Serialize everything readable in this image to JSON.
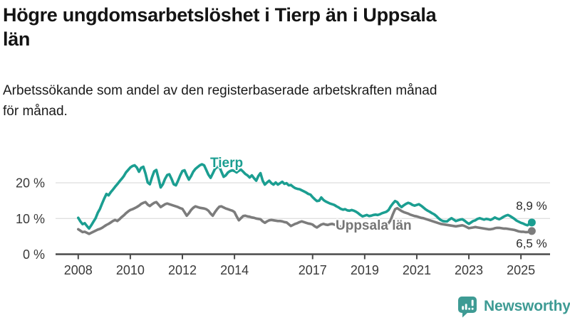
{
  "chart_data": {
    "type": "line",
    "title": "Högre ungdomsarbetslöshet i Tierp än i Uppsala län",
    "title_lines": [
      "Högre ungdomsarbetslöshet i Tierp än i Uppsala",
      "län"
    ],
    "subtitle": "Arbetssökande som andel av den registerbaserade arbetskraften månad för månad.",
    "subtitle_lines": [
      "Arbetssökande som andel av den registerbaserade arbetskraften månad",
      "för månad."
    ],
    "xlabel": "",
    "ylabel": "",
    "xlim": [
      2008,
      2025.6
    ],
    "ylim": [
      0,
      27
    ],
    "grid": "horizontal-at-10-and-20",
    "legend_position": "inline-labels-on-lines",
    "x_unit": "year-monthly-resolution",
    "x_start": 2008.0,
    "x_step": 0.0833333,
    "x_ticks": [
      2008,
      2010,
      2012,
      2014,
      2017,
      2019,
      2021,
      2023,
      2025
    ],
    "y_ticks": [
      {
        "value": 0,
        "label": "0 %"
      },
      {
        "value": 10,
        "label": "10 %"
      },
      {
        "value": 20,
        "label": "20 %"
      }
    ],
    "series": [
      {
        "name": "Uppsala län",
        "label": "Uppsala län",
        "end_label": "6,5 %",
        "end_value": 6.5,
        "color": "#7c7c7c",
        "values": [
          7.0,
          6.6,
          6.2,
          6.3,
          6.0,
          5.7,
          6.0,
          6.3,
          6.6,
          6.9,
          7.1,
          7.4,
          7.8,
          8.2,
          8.5,
          8.9,
          9.3,
          9.6,
          9.3,
          9.8,
          10.4,
          10.9,
          11.5,
          12.0,
          12.4,
          12.6,
          12.9,
          13.2,
          13.6,
          14.1,
          14.4,
          14.6,
          13.9,
          13.5,
          14.0,
          14.4,
          14.6,
          13.9,
          13.2,
          13.6,
          14.0,
          14.2,
          14.0,
          13.8,
          13.6,
          13.4,
          13.2,
          12.9,
          12.7,
          11.8,
          10.8,
          11.5,
          12.4,
          13.0,
          13.4,
          13.2,
          13.0,
          12.9,
          12.8,
          12.6,
          12.2,
          11.4,
          10.8,
          11.8,
          12.6,
          13.3,
          13.4,
          13.1,
          12.8,
          12.6,
          12.4,
          12.2,
          11.8,
          10.6,
          9.5,
          10.1,
          10.7,
          10.8,
          10.6,
          10.5,
          10.3,
          10.2,
          10.0,
          9.9,
          9.8,
          9.2,
          8.8,
          9.2,
          9.5,
          9.6,
          9.5,
          9.4,
          9.3,
          9.3,
          9.2,
          9.0,
          8.9,
          8.4,
          7.9,
          8.2,
          8.5,
          8.7,
          9.0,
          9.2,
          9.0,
          8.8,
          8.6,
          8.5,
          8.3,
          7.8,
          7.5,
          7.9,
          8.3,
          8.5,
          8.3,
          8.2,
          8.4,
          8.5,
          8.3,
          8.1,
          7.9,
          7.6,
          7.4,
          7.7,
          7.9,
          8.0,
          7.9,
          7.8,
          7.7,
          7.6,
          7.5,
          7.4,
          7.4,
          7.5,
          7.6,
          7.6,
          7.7,
          7.8,
          7.8,
          7.9,
          8.0,
          8.1,
          8.3,
          8.7,
          9.6,
          11.2,
          12.6,
          12.9,
          12.5,
          12.1,
          11.8,
          11.6,
          11.4,
          11.1,
          10.9,
          10.7,
          10.6,
          10.4,
          10.2,
          10.1,
          9.9,
          9.7,
          9.5,
          9.3,
          9.1,
          8.9,
          8.7,
          8.5,
          8.4,
          8.3,
          8.2,
          8.1,
          8.0,
          7.9,
          7.8,
          7.9,
          8.0,
          8.1,
          7.9,
          7.6,
          7.3,
          7.4,
          7.5,
          7.6,
          7.5,
          7.4,
          7.3,
          7.2,
          7.1,
          7.0,
          7.0,
          7.1,
          7.3,
          7.4,
          7.4,
          7.3,
          7.2,
          7.2,
          7.1,
          7.0,
          6.9,
          6.8,
          6.6,
          6.4,
          6.3,
          6.3,
          6.2,
          6.2,
          6.3,
          6.5
        ]
      },
      {
        "name": "Tierp",
        "label": "Tierp",
        "end_label": "8,9 %",
        "end_value": 8.9,
        "color": "#1b9e91",
        "values": [
          10.2,
          9.2,
          8.4,
          8.7,
          7.9,
          7.2,
          8.1,
          9.1,
          10.1,
          11.6,
          12.7,
          14.2,
          15.6,
          16.9,
          16.5,
          17.4,
          18.1,
          18.9,
          19.6,
          20.4,
          21.1,
          21.9,
          22.9,
          23.6,
          24.3,
          24.7,
          24.9,
          24.3,
          23.1,
          24.2,
          24.5,
          22.6,
          20.1,
          19.6,
          21.6,
          23.2,
          23.6,
          21.2,
          18.7,
          19.6,
          21.1,
          22.2,
          22.4,
          21.1,
          19.6,
          19.3,
          20.6,
          22.1,
          23.3,
          23.5,
          22.1,
          20.9,
          21.9,
          23.1,
          23.9,
          24.4,
          24.9,
          25.2,
          24.9,
          23.6,
          22.3,
          21.4,
          22.6,
          23.9,
          24.4,
          24.6,
          23.1,
          21.7,
          22.1,
          22.9,
          23.3,
          23.5,
          23.3,
          22.9,
          23.4,
          23.7,
          23.1,
          22.5,
          22.1,
          21.5,
          22.1,
          21.3,
          20.6,
          21.9,
          22.7,
          20.6,
          19.5,
          20.1,
          20.6,
          19.9,
          19.5,
          20.1,
          19.5,
          19.9,
          20.3,
          19.7,
          19.9,
          19.3,
          19.4,
          18.9,
          18.5,
          18.3,
          18.2,
          17.9,
          17.6,
          17.3,
          16.9,
          16.7,
          16.0,
          15.4,
          14.9,
          15.0,
          15.9,
          15.2,
          14.8,
          14.5,
          14.2,
          14.0,
          13.8,
          13.4,
          13.1,
          12.7,
          12.5,
          12.6,
          12.3,
          12.2,
          12.4,
          12.2,
          11.9,
          11.5,
          11.0,
          10.6,
          10.8,
          11.0,
          10.7,
          10.8,
          11.0,
          11.1,
          11.0,
          11.2,
          11.5,
          11.7,
          11.9,
          12.4,
          13.4,
          14.2,
          14.9,
          14.6,
          13.7,
          13.2,
          13.7,
          14.1,
          14.4,
          14.2,
          13.8,
          13.6,
          13.8,
          14.0,
          13.6,
          13.1,
          12.6,
          12.2,
          11.9,
          11.5,
          11.2,
          10.7,
          10.1,
          9.6,
          9.3,
          9.2,
          9.2,
          9.7,
          10.1,
          9.7,
          9.3,
          9.5,
          9.7,
          9.8,
          9.4,
          8.9,
          8.5,
          8.9,
          9.3,
          9.5,
          9.9,
          10.1,
          9.9,
          9.7,
          9.9,
          9.8,
          9.6,
          9.9,
          10.3,
          10.0,
          9.8,
          10.1,
          10.5,
          10.8,
          11.0,
          10.7,
          10.3,
          9.9,
          9.4,
          9.1,
          8.8,
          8.6,
          8.3,
          8.1,
          8.5,
          8.9
        ]
      }
    ]
  },
  "styles": {
    "axis_color": "#4a4a4a",
    "grid_color": "#e0e0e0",
    "tierp_color": "#1b9e91",
    "uppsala_color": "#7c7c7c",
    "logo_color": "#3e9b94"
  },
  "footer": {
    "brand": "Newsworthy"
  }
}
